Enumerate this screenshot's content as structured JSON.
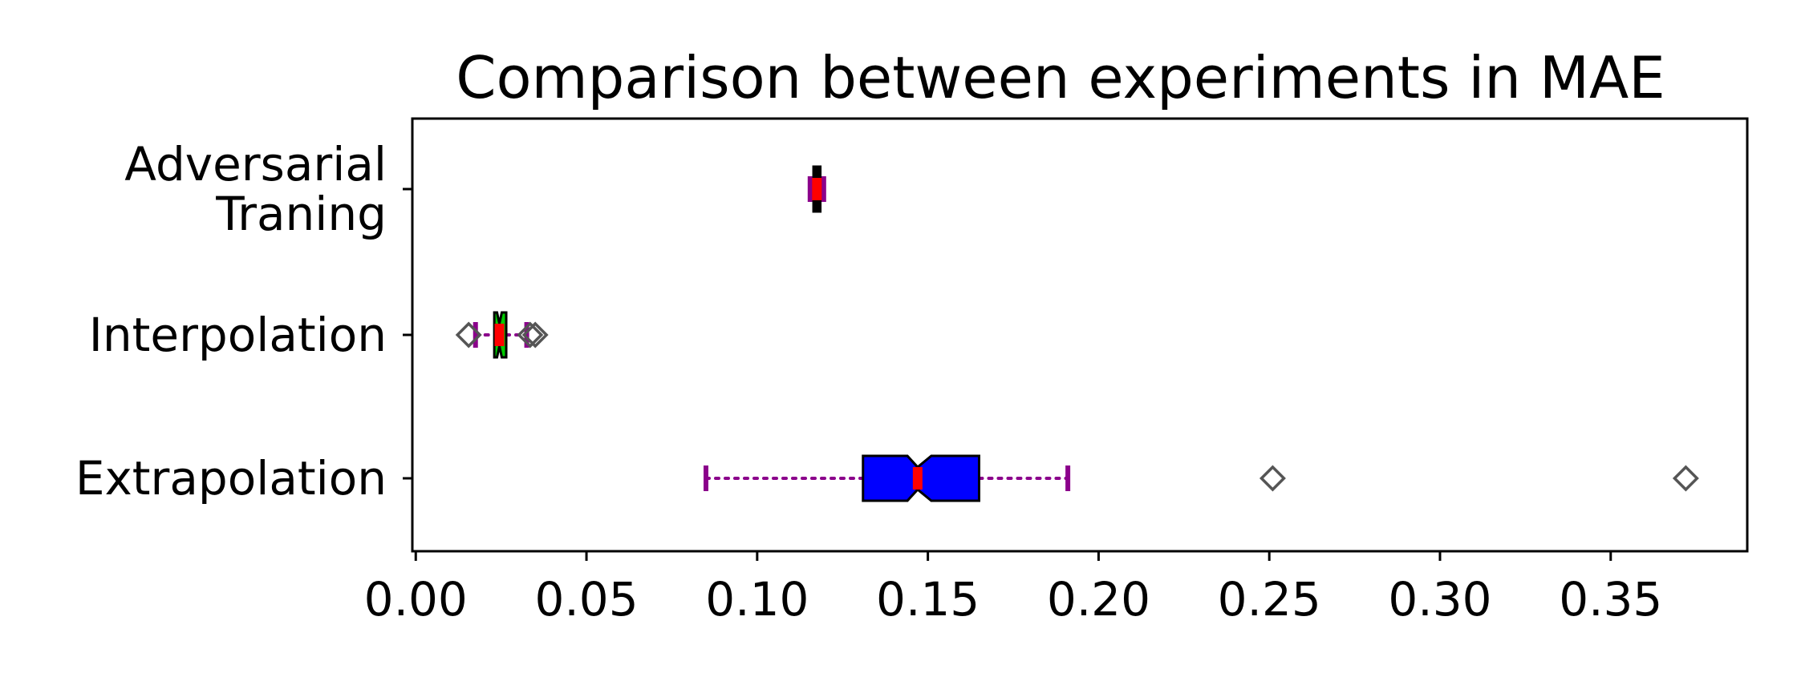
{
  "chart_data": {
    "type": "boxplot",
    "orientation": "horizontal",
    "notched": true,
    "title": "Comparison between experiments in MAE",
    "xlabel": "",
    "ylabel": "",
    "xlim": [
      -0.001,
      0.39
    ],
    "xticks": [
      0.0,
      0.05,
      0.1,
      0.15,
      0.2,
      0.25,
      0.3,
      0.35
    ],
    "xtick_labels": [
      "0.00",
      "0.05",
      "0.10",
      "0.15",
      "0.20",
      "0.25",
      "0.30",
      "0.35"
    ],
    "categories": [
      "Adversarial\nTraning",
      "Interpolation",
      "Extrapolation"
    ],
    "grid": false,
    "boxes": [
      {
        "category": "Adversarial\nTraning",
        "whisker_low": 0.1155,
        "q1": 0.1165,
        "median": 0.1175,
        "q3": 0.1185,
        "whisker_high": 0.1195,
        "notch_low": 0.1172,
        "notch_high": 0.1178,
        "box_color": "#000000",
        "outliers": []
      },
      {
        "category": "Interpolation",
        "whisker_low": 0.0175,
        "q1": 0.023,
        "median": 0.0245,
        "q3": 0.0265,
        "whisker_high": 0.0325,
        "notch_low": 0.0238,
        "notch_high": 0.0252,
        "box_color": "#00cc00",
        "outliers": [
          0.0155,
          0.0335,
          0.035
        ]
      },
      {
        "category": "Extrapolation",
        "whisker_low": 0.085,
        "q1": 0.131,
        "median": 0.147,
        "q3": 0.165,
        "whisker_high": 0.191,
        "notch_low": 0.144,
        "notch_high": 0.151,
        "box_color": "#0000ff",
        "outliers": [
          0.251,
          0.372
        ]
      }
    ],
    "style": {
      "median_color": "#ff0000",
      "whisker_color": "#8b008b",
      "box_edge_color": "#000000",
      "outlier_marker": "diamond",
      "outlier_edge_color": "#555555"
    }
  }
}
